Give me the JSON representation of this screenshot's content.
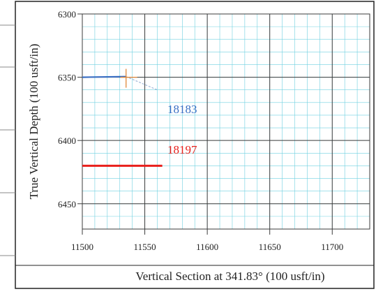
{
  "chart_data": {
    "type": "line",
    "xlabel": "Vertical Section at 341.83° (100 usft/in)",
    "ylabel": "True Vertical Depth (100 usft/in)",
    "xlim": [
      11500,
      11730
    ],
    "ylim": [
      6300,
      6470
    ],
    "y_inverted": true,
    "grid": true,
    "x_ticks": [
      11500,
      11550,
      11600,
      11650,
      11700
    ],
    "y_ticks": [
      6300,
      6350,
      6400,
      6450
    ],
    "x_tick_labels": [
      "11500",
      "11550",
      "11600",
      "11650",
      "11700"
    ],
    "y_tick_labels": [
      "6300",
      "6350",
      "6400",
      "6450"
    ],
    "series": [
      {
        "name": "18183",
        "color": "#3a6fc4",
        "x": [
          11500,
          11535
        ],
        "y": [
          6350,
          6349.5
        ],
        "projection": {
          "x": [
            11535,
            11560
          ],
          "y": [
            6349.5,
            6360
          ],
          "color": "#9fb6d8"
        },
        "marker": {
          "x": 11535,
          "y": 6350,
          "color": "#e0883a"
        }
      },
      {
        "name": "18197",
        "color": "#e8201c",
        "x": [
          11500,
          11564
        ],
        "y": [
          6420,
          6420
        ]
      }
    ]
  }
}
